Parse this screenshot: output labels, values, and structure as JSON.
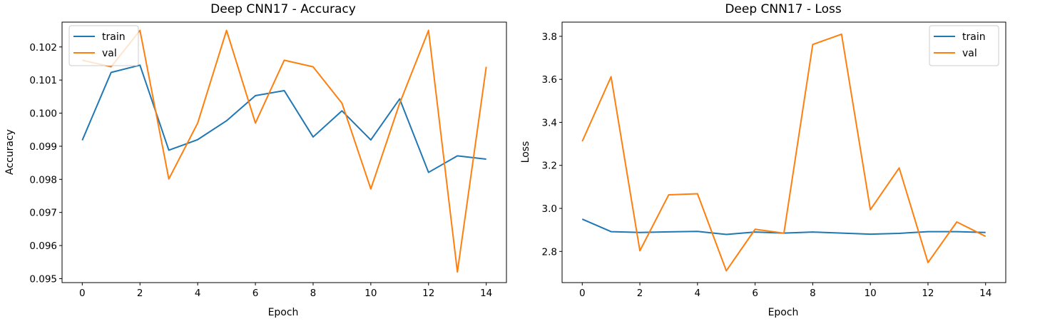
{
  "chart_data": [
    {
      "type": "line",
      "title": "Deep CNN17 - Accuracy",
      "xlabel": "Epoch",
      "ylabel": "Accuracy",
      "xlim": [
        -0.7,
        14.7
      ],
      "ylim": [
        0.09488,
        0.10275
      ],
      "xticks": [
        0,
        2,
        4,
        6,
        8,
        10,
        12,
        14
      ],
      "xtick_labels": [
        "0",
        "2",
        "4",
        "6",
        "8",
        "10",
        "12",
        "14"
      ],
      "yticks": [
        0.095,
        0.096,
        0.097,
        0.098,
        0.099,
        0.1,
        0.101,
        0.102
      ],
      "ytick_labels": [
        "0.095",
        "0.096",
        "0.097",
        "0.098",
        "0.099",
        "0.100",
        "0.101",
        "0.102"
      ],
      "legend_position": "top-left",
      "grid": false,
      "x": [
        0,
        1,
        2,
        3,
        4,
        5,
        6,
        7,
        8,
        9,
        10,
        11,
        12,
        13,
        14
      ],
      "series": [
        {
          "name": "train",
          "color": "#1f77b4",
          "values": [
            0.09918,
            0.10123,
            0.10145,
            0.09888,
            0.0992,
            0.09977,
            0.10053,
            0.10068,
            0.09928,
            0.10007,
            0.09919,
            0.10043,
            0.09821,
            0.09871,
            0.09861
          ]
        },
        {
          "name": "val",
          "color": "#ff7f0e",
          "values": [
            0.1016,
            0.1014,
            0.1025,
            0.09801,
            0.0997,
            0.1025,
            0.0997,
            0.1016,
            0.1014,
            0.1003,
            0.09771,
            0.1003,
            0.1025,
            0.0952,
            0.1014
          ]
        }
      ]
    },
    {
      "type": "line",
      "title": "Deep CNN17 - Loss",
      "xlabel": "Epoch",
      "ylabel": "Loss",
      "xlim": [
        -0.7,
        14.7
      ],
      "ylim": [
        2.655,
        3.866
      ],
      "xticks": [
        0,
        2,
        4,
        6,
        8,
        10,
        12,
        14
      ],
      "xtick_labels": [
        "0",
        "2",
        "4",
        "6",
        "8",
        "10",
        "12",
        "14"
      ],
      "yticks": [
        2.8,
        3.0,
        3.2,
        3.4,
        3.6,
        3.8
      ],
      "ytick_labels": [
        "2.8",
        "3.0",
        "3.2",
        "3.4",
        "3.6",
        "3.8"
      ],
      "legend_position": "top-right",
      "grid": false,
      "x": [
        0,
        1,
        2,
        3,
        4,
        5,
        6,
        7,
        8,
        9,
        10,
        11,
        12,
        13,
        14
      ],
      "series": [
        {
          "name": "train",
          "color": "#1f77b4",
          "values": [
            2.95,
            2.892,
            2.888,
            2.891,
            2.893,
            2.879,
            2.89,
            2.885,
            2.89,
            2.885,
            2.88,
            2.884,
            2.892,
            2.892,
            2.888
          ]
        },
        {
          "name": "val",
          "color": "#ff7f0e",
          "values": [
            3.312,
            3.612,
            2.803,
            3.063,
            3.068,
            2.71,
            2.903,
            2.885,
            3.762,
            3.81,
            2.994,
            3.188,
            2.748,
            2.937,
            2.87
          ]
        }
      ]
    }
  ]
}
